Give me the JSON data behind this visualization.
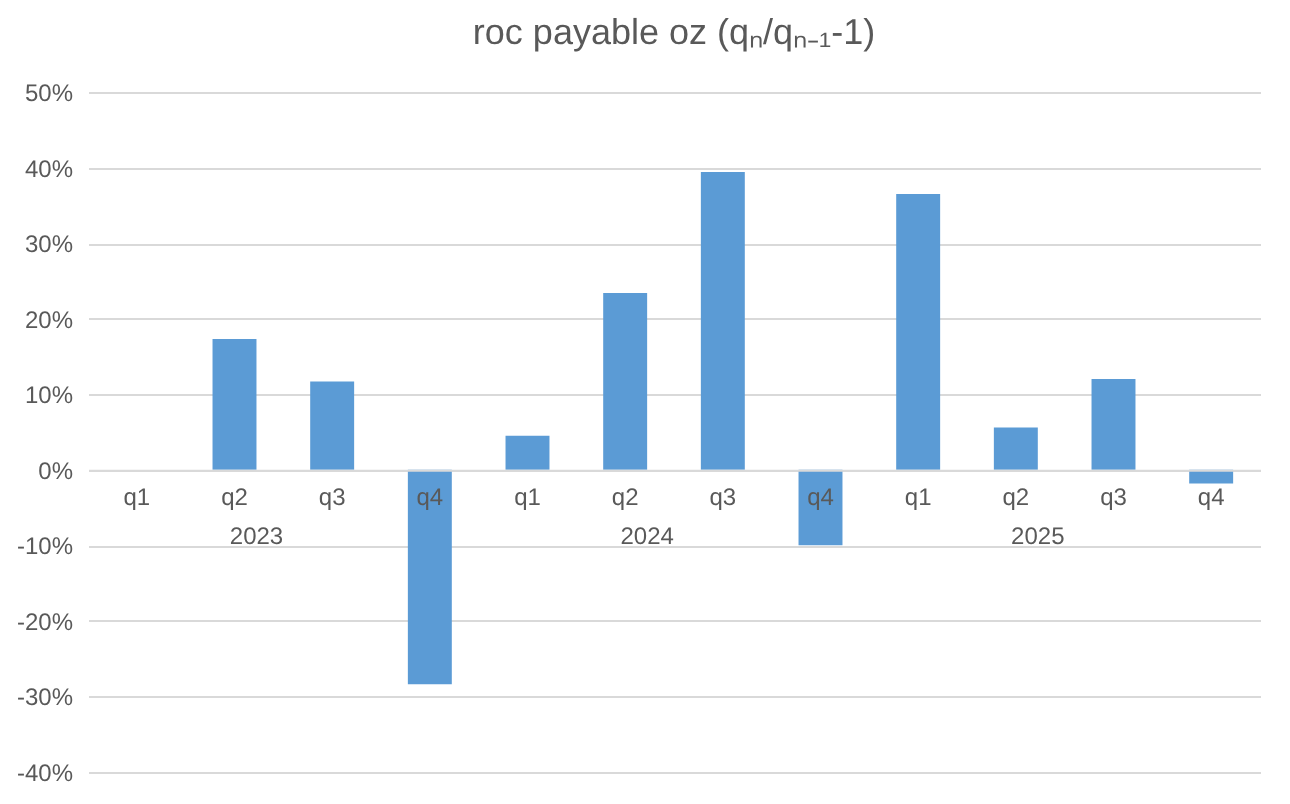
{
  "chart_data": {
    "type": "bar",
    "title": "roc payable oz (qₙ/qₙ₋₁-1)",
    "categories": [
      "q1",
      "q2",
      "q3",
      "q4",
      "q1",
      "q2",
      "q3",
      "q4",
      "q1",
      "q2",
      "q3",
      "q4"
    ],
    "values": [
      null,
      17.3,
      11.7,
      -28.4,
      4.5,
      23.4,
      39.4,
      -10.0,
      36.5,
      5.6,
      12.0,
      -1.8
    ],
    "color": "#5b9bd5",
    "annotations": [
      "2023",
      "2024",
      "2025"
    ],
    "ylim": [
      -40,
      50
    ],
    "yticks": [
      {
        "value": -40,
        "label": "-40%"
      },
      {
        "value": -30,
        "label": "-30%"
      },
      {
        "value": -20,
        "label": "-20%"
      },
      {
        "value": -10,
        "label": "-10%"
      },
      {
        "value": 0,
        "label": "0%"
      },
      {
        "value": 10,
        "label": "10%"
      },
      {
        "value": 20,
        "label": "20%"
      },
      {
        "value": 30,
        "label": "30%"
      },
      {
        "value": 40,
        "label": "40%"
      },
      {
        "value": 50,
        "label": "50%"
      }
    ],
    "grid": "y"
  }
}
